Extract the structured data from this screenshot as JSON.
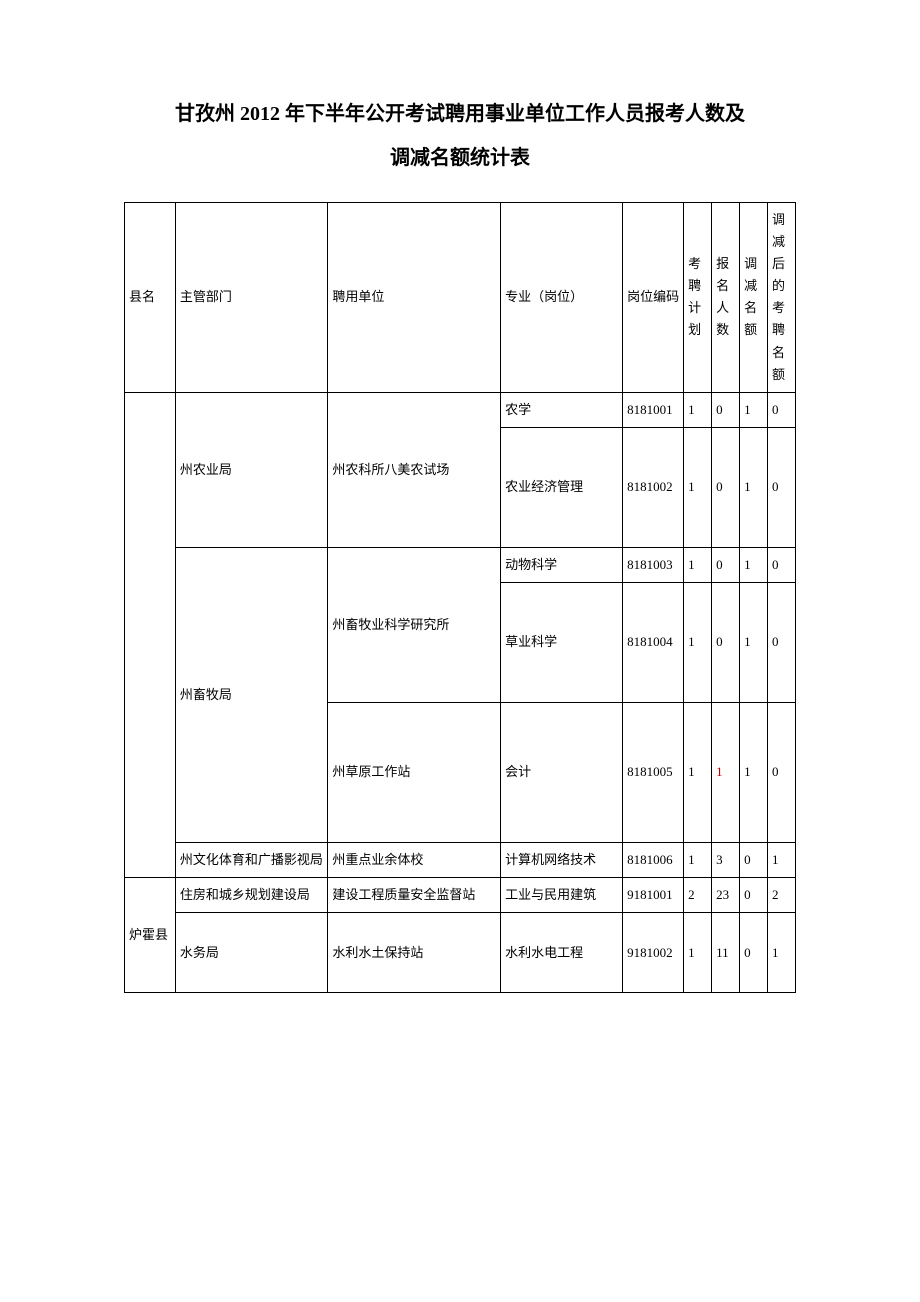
{
  "title": {
    "line1": "甘孜州 2012 年下半年公开考试聘用事业单位工作人员报考人数及",
    "line2": "调减名额统计表"
  },
  "headers": {
    "county": "县名",
    "dept": "主管部门",
    "unit": "聘用单位",
    "major": "专业（岗位）",
    "code": "岗位编码",
    "plan": "考聘计划",
    "applicants": "报名人数",
    "reduce": "调减名额",
    "after": "调减后的考聘名额"
  },
  "rows": [
    {
      "county": "",
      "dept": "州农业局",
      "unit": "州农科所八美农试场",
      "major": "农学",
      "code": "8181001",
      "plan": "1",
      "applicants": "0",
      "reduce": "1",
      "after": "0",
      "applicants_red": false
    },
    {
      "major": "农业经济管理",
      "code": "8181002",
      "plan": "1",
      "applicants": "0",
      "reduce": "1",
      "after": "0",
      "applicants_red": false
    },
    {
      "dept": "州畜牧局",
      "unit": "州畜牧业科学研究所",
      "major": "动物科学",
      "code": "8181003",
      "plan": "1",
      "applicants": "0",
      "reduce": "1",
      "after": "0",
      "applicants_red": false
    },
    {
      "major": "草业科学",
      "code": "8181004",
      "plan": "1",
      "applicants": "0",
      "reduce": "1",
      "after": "0",
      "applicants_red": false
    },
    {
      "unit": "州草原工作站",
      "major": "会计",
      "code": "8181005",
      "plan": "1",
      "applicants": "1",
      "reduce": "1",
      "after": "0",
      "applicants_red": true
    },
    {
      "dept": "州文化体育和广播影视局",
      "unit": "州重点业余体校",
      "major": "计算机网络技术",
      "code": "8181006",
      "plan": "1",
      "applicants": "3",
      "reduce": "0",
      "after": "1",
      "applicants_red": false
    },
    {
      "county": "炉霍县",
      "dept": "住房和城乡规划建设局",
      "unit": "建设工程质量安全监督站",
      "major": "工业与民用建筑",
      "code": "9181001",
      "plan": "2",
      "applicants": "23",
      "reduce": "0",
      "after": "2",
      "applicants_red": false
    },
    {
      "dept": "水务局",
      "unit": "水利水土保持站",
      "major": "水利水电工程",
      "code": "9181002",
      "plan": "1",
      "applicants": "11",
      "reduce": "0",
      "after": "1",
      "applicants_red": false
    }
  ],
  "table_style": {
    "border_color": "#000000",
    "background_color": "#ffffff",
    "font_size": 13,
    "red_color": "#c00000",
    "text_color": "#000000"
  }
}
